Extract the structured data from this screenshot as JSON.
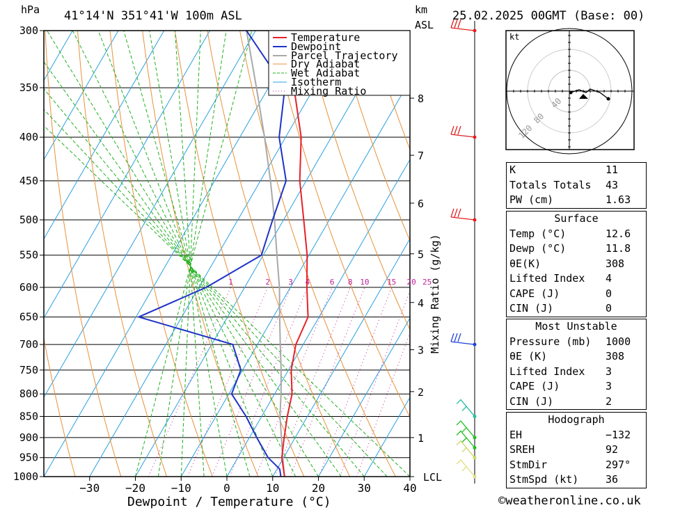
{
  "header": {
    "left_unit": "hPa",
    "location": "41°14'N  351°41'W  100m  ASL",
    "km_label": "km",
    "asl_label": "ASL",
    "date": "25.02.2025  00GMT  (Base: 00)"
  },
  "legend": [
    "Temperature",
    "Dewpoint",
    "Parcel Trajectory",
    "Dry Adiabat",
    "Wet Adiabat",
    "Isotherm",
    "Mixing Ratio"
  ],
  "colors": {
    "temperature": "#e8202a",
    "dewpoint": "#1e32c8",
    "parcel": "#a8a8a8",
    "dry_adiabat": "#e8903a",
    "wet_adiabat": "#20b020",
    "isotherm": "#2aa0e0",
    "mixing_ratio": "#c0209a"
  },
  "chart_data": {
    "type": "line",
    "xlabel": "Dewpoint / Temperature (°C)",
    "ylabel": "hPa",
    "xlim": [
      -40,
      40
    ],
    "ylim": [
      1000,
      300
    ],
    "x_ticks": [
      "−30",
      "−20",
      "−10",
      "0",
      "10",
      "20",
      "30",
      "40"
    ],
    "pressure_ticks": [
      "300",
      "350",
      "400",
      "450",
      "500",
      "550",
      "600",
      "650",
      "700",
      "750",
      "800",
      "850",
      "900",
      "950",
      "1000"
    ],
    "km_ticks": [
      "8",
      "7",
      "6",
      "5",
      "4",
      "3",
      "2",
      "1",
      "LCL"
    ],
    "mixing_ratio_label": "Mixing Ratio (g/kg)",
    "mixing_ratio_values": [
      "1",
      "2",
      "3",
      "4",
      "6",
      "8",
      "10",
      "15",
      "20",
      "25"
    ],
    "series": [
      {
        "name": "Temperature",
        "points": [
          [
            1000,
            12.6
          ],
          [
            950,
            9.6
          ],
          [
            900,
            7.6
          ],
          [
            850,
            5.6
          ],
          [
            800,
            3.8
          ],
          [
            750,
            0.6
          ],
          [
            700,
            -1.6
          ],
          [
            650,
            -2.4
          ],
          [
            600,
            -6.4
          ],
          [
            550,
            -10.4
          ],
          [
            500,
            -15.6
          ],
          [
            450,
            -21.4
          ],
          [
            400,
            -26.6
          ],
          [
            350,
            -34.4
          ],
          [
            300,
            -43.4
          ]
        ]
      },
      {
        "name": "Dewpoint",
        "points": [
          [
            1000,
            11.8
          ],
          [
            980,
            10.6
          ],
          [
            950,
            6.6
          ],
          [
            900,
            1.6
          ],
          [
            850,
            -3.4
          ],
          [
            800,
            -9.4
          ],
          [
            750,
            -10.4
          ],
          [
            700,
            -15.4
          ],
          [
            650,
            -39.4
          ],
          [
            600,
            -28.4
          ],
          [
            550,
            -20.4
          ],
          [
            500,
            -22.4
          ],
          [
            450,
            -24.4
          ],
          [
            400,
            -31.4
          ],
          [
            350,
            -36.4
          ],
          [
            300,
            -52
          ]
        ]
      },
      {
        "name": "Parcel Trajectory",
        "points": [
          [
            1000,
            12.6
          ],
          [
            950,
            9.8
          ],
          [
            900,
            7.0
          ],
          [
            850,
            4.0
          ],
          [
            800,
            1.4
          ],
          [
            750,
            -1.6
          ],
          [
            700,
            -5.0
          ],
          [
            650,
            -8.6
          ],
          [
            600,
            -12.4
          ],
          [
            550,
            -17.0
          ],
          [
            500,
            -22.0
          ],
          [
            450,
            -27.8
          ],
          [
            400,
            -34.6
          ],
          [
            350,
            -42.6
          ],
          [
            300,
            -52.0
          ]
        ]
      }
    ],
    "wind_pressures": [
      1000,
      950,
      925,
      900,
      850,
      700,
      500,
      400,
      300
    ]
  },
  "hodograph": {
    "unit_label": "kt",
    "ring_labels": [
      "40",
      "80",
      "120"
    ]
  },
  "indices": {
    "k_label": "K",
    "k": "11",
    "tt_label": "Totals Totals",
    "tt": "43",
    "pw_label": "PW (cm)",
    "pw": "1.63"
  },
  "surface": {
    "title": "Surface",
    "temp_label": "Temp (°C)",
    "temp": "12.6",
    "dewp_label": "Dewp (°C)",
    "dewp": "11.8",
    "thetae_label": "θE(K)",
    "thetae": "308",
    "li_label": "Lifted Index",
    "li": "4",
    "cape_label": "CAPE (J)",
    "cape": "0",
    "cin_label": "CIN (J)",
    "cin": "0"
  },
  "most_unstable": {
    "title": "Most Unstable",
    "pressure_label": "Pressure (mb)",
    "pressure": "1000",
    "thetae_label": "θE (K)",
    "thetae": "308",
    "li_label": "Lifted Index",
    "li": "3",
    "cape_label": "CAPE (J)",
    "cape": "3",
    "cin_label": "CIN (J)",
    "cin": "2"
  },
  "hodo_indices": {
    "title": "Hodograph",
    "eh_label": "EH",
    "eh": "−132",
    "sreh_label": "SREH",
    "sreh": "92",
    "stmdir_label": "StmDir",
    "stmdir": "297°",
    "stmspd_label": "StmSpd (kt)",
    "stmspd": "36"
  },
  "copyright": "©weatheronline.co.uk"
}
